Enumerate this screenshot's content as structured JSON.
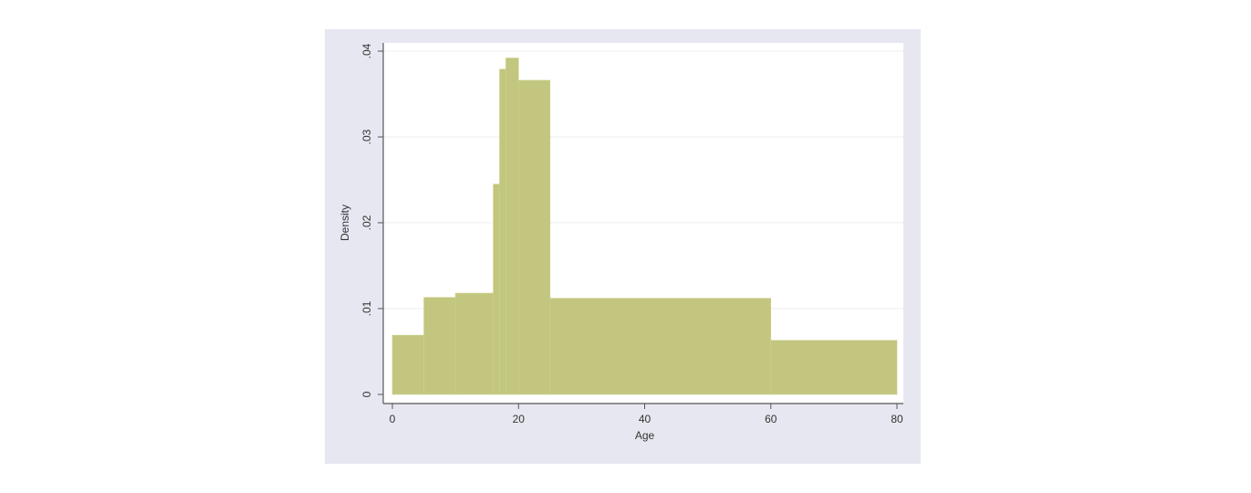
{
  "chart_data": {
    "type": "bar",
    "title": "",
    "xlabel": "Age",
    "ylabel": "Density",
    "xlim": [
      0,
      80
    ],
    "ylim": [
      0,
      0.04
    ],
    "xticks": [
      {
        "value": 0,
        "label": "0"
      },
      {
        "value": 20,
        "label": "20"
      },
      {
        "value": 40,
        "label": "40"
      },
      {
        "value": 60,
        "label": "60"
      },
      {
        "value": 80,
        "label": "80"
      }
    ],
    "yticks": [
      {
        "value": 0,
        "label": "0"
      },
      {
        "value": 0.01,
        "label": ".01"
      },
      {
        "value": 0.02,
        "label": ".02"
      },
      {
        "value": 0.03,
        "label": ".03"
      },
      {
        "value": 0.04,
        "label": ".04"
      }
    ],
    "grid": true,
    "bar_color": "#c2c67e",
    "frame_color": "#e7e7f1",
    "bins": [
      {
        "x0": 0,
        "x1": 5,
        "density": 0.0069
      },
      {
        "x0": 5,
        "x1": 10,
        "density": 0.0113
      },
      {
        "x0": 10,
        "x1": 16,
        "density": 0.0118
      },
      {
        "x0": 16,
        "x1": 17,
        "density": 0.0245
      },
      {
        "x0": 17,
        "x1": 18,
        "density": 0.0379
      },
      {
        "x0": 18,
        "x1": 20,
        "density": 0.0392
      },
      {
        "x0": 20,
        "x1": 25,
        "density": 0.0366
      },
      {
        "x0": 25,
        "x1": 60,
        "density": 0.0112
      },
      {
        "x0": 60,
        "x1": 80,
        "density": 0.0063
      }
    ]
  }
}
